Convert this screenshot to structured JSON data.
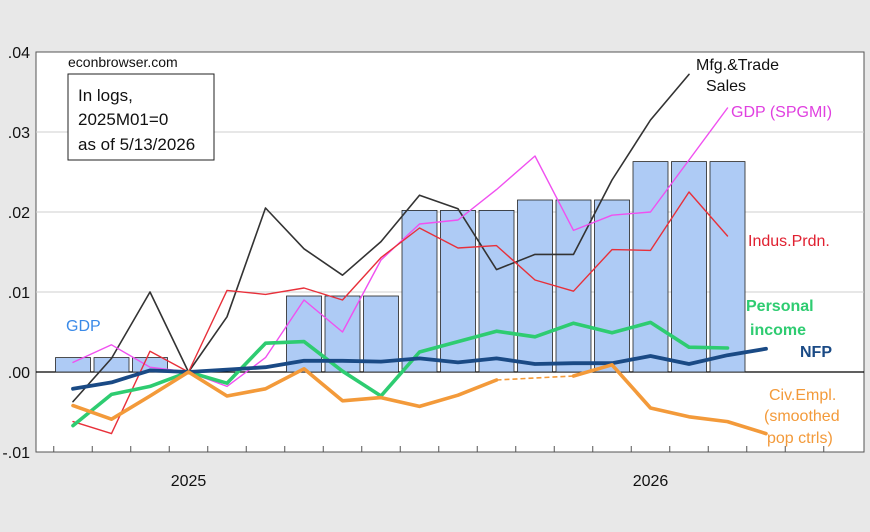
{
  "chart_data": {
    "type": "bar+line",
    "source_label": "econbrowser.com",
    "note_lines": [
      "In logs,",
      "2025M01=0",
      "as of 5/13/2026"
    ],
    "ylim": [
      -0.01,
      0.04
    ],
    "y_ticks": [
      -0.01,
      0.0,
      0.01,
      0.02,
      0.03,
      0.04
    ],
    "y_tick_labels": [
      "-.01",
      ".00",
      ".01",
      ".02",
      ".03",
      ".04"
    ],
    "x_tick_labels": [
      {
        "label": "2025",
        "index": 3
      },
      {
        "label": "2026",
        "index": 15
      }
    ],
    "months": [
      "2024-10",
      "2024-11",
      "2024-12",
      "2025-01",
      "2025-02",
      "2025-03",
      "2025-04",
      "2025-05",
      "2025-06",
      "2025-07",
      "2025-08",
      "2025-09",
      "2025-10",
      "2025-11",
      "2025-12",
      "2026-01",
      "2026-02",
      "2026-03",
      "2026-04",
      "2026-05"
    ],
    "bars": {
      "name": "GDP",
      "color": "#aecbf5",
      "values": [
        0.0018,
        0.0018,
        0.0018,
        null,
        null,
        null,
        0.0095,
        0.0095,
        0.0095,
        0.0202,
        0.0202,
        0.0202,
        0.0215,
        0.0215,
        0.0215,
        0.0263,
        0.0263,
        0.0263,
        null,
        null
      ]
    },
    "series": [
      {
        "name": "Mfg.&Trade Sales",
        "label_lines": [
          "Mfg.&Trade",
          "Sales"
        ],
        "color": "#333333",
        "width": 1.6,
        "values": [
          -0.0037,
          0.0017,
          0.01,
          0.0,
          0.0069,
          0.0205,
          0.0154,
          0.0121,
          0.0163,
          0.0221,
          0.0204,
          0.0128,
          0.0147,
          0.0147,
          0.024,
          0.0315,
          0.0372,
          null,
          null,
          null
        ]
      },
      {
        "name": "GDP (SPGMI)",
        "label_lines": [
          "GDP (SPGMI)"
        ],
        "color": "#f050f0",
        "width": 1.4,
        "values": [
          0.0012,
          0.0034,
          0.0006,
          0.0,
          -0.0018,
          0.0018,
          0.009,
          0.005,
          0.014,
          0.0185,
          0.019,
          0.0228,
          0.027,
          0.0177,
          0.0196,
          0.02,
          0.0265,
          0.033,
          null,
          null
        ]
      },
      {
        "name": "Indus.Prdn.",
        "label_lines": [
          "Indus.Prdn."
        ],
        "color": "#e8303a",
        "width": 1.4,
        "values": [
          -0.0062,
          -0.0077,
          0.0026,
          0.0,
          0.0102,
          0.0097,
          0.0105,
          0.009,
          0.0143,
          0.018,
          0.0155,
          0.0158,
          0.0115,
          0.0101,
          0.0153,
          0.0152,
          0.0225,
          0.017,
          null,
          null
        ]
      },
      {
        "name": "Personal income",
        "label_lines": [
          "Personal",
          "income"
        ],
        "color": "#2ecc71",
        "width": 3.6,
        "values": [
          -0.0067,
          -0.0028,
          -0.0018,
          0.0,
          -0.0014,
          0.0036,
          0.0038,
          0.0001,
          -0.003,
          0.0025,
          0.0038,
          0.0051,
          0.0044,
          0.0061,
          0.0049,
          0.0062,
          0.0031,
          0.003,
          null,
          null
        ]
      },
      {
        "name": "NFP",
        "label_lines": [
          "NFP"
        ],
        "color": "#1a4a85",
        "width": 3.8,
        "values": [
          -0.0021,
          -0.0013,
          0.0002,
          0.0,
          0.0003,
          0.0006,
          0.0014,
          0.0014,
          0.0013,
          0.0017,
          0.0012,
          0.0017,
          0.001,
          0.0011,
          0.0011,
          0.002,
          0.001,
          0.0021,
          0.0029,
          null
        ]
      },
      {
        "name": "Civ.Empl. (smoothed pop ctrls)",
        "label_lines": [
          "Civ.Empl.",
          "(smoothed",
          "pop ctrls)"
        ],
        "color": "#f39a3a",
        "width": 3.6,
        "values": [
          -0.0042,
          -0.0059,
          -0.003,
          0.0,
          -0.003,
          -0.0021,
          0.0004,
          -0.0036,
          -0.0032,
          -0.0043,
          -0.0029,
          -0.001,
          null,
          -0.0005,
          0.0009,
          -0.0045,
          -0.0056,
          -0.0062,
          -0.0077,
          null
        ],
        "dashed_gap": [
          11,
          13,
          -0.001,
          -0.0005
        ]
      }
    ],
    "gdp_label": "GDP"
  }
}
